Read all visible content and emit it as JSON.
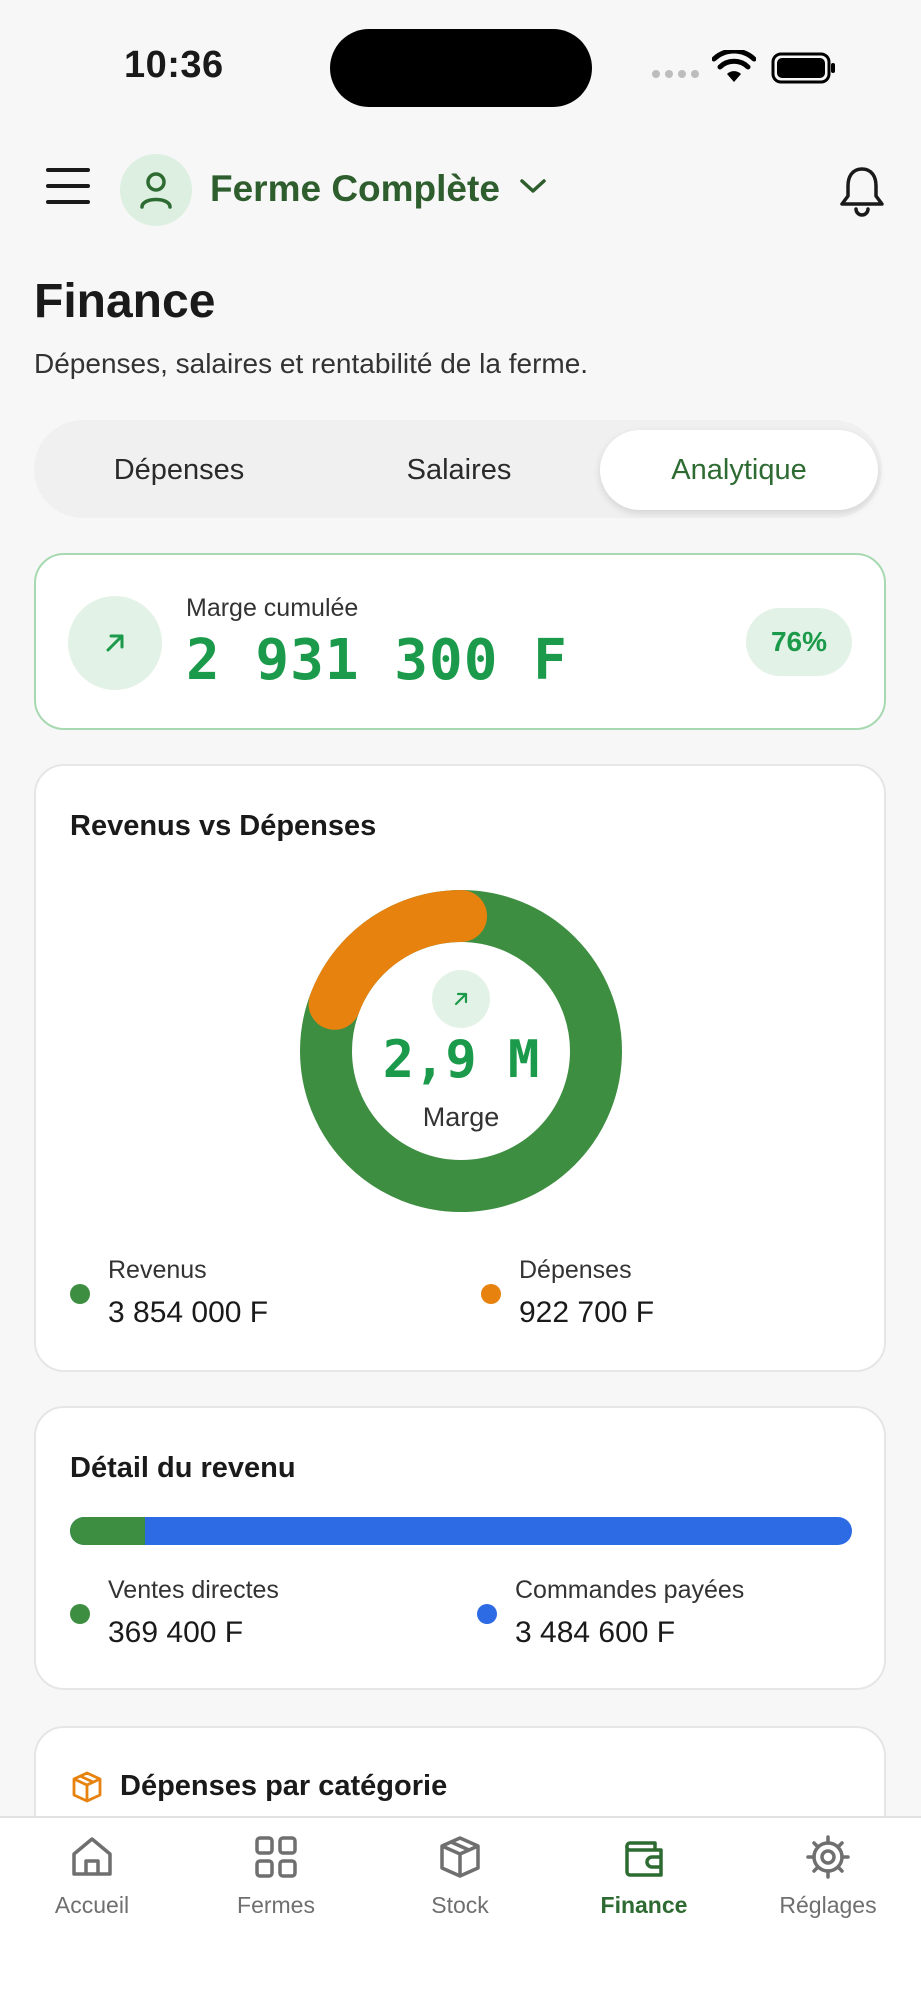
{
  "status_bar": {
    "time": "10:36"
  },
  "header": {
    "farm_name": "Ferme Complète"
  },
  "page": {
    "title": "Finance",
    "subtitle": "Dépenses, salaires et rentabilité de la ferme."
  },
  "tabs": [
    {
      "label": "Dépenses",
      "active": false
    },
    {
      "label": "Salaires",
      "active": false
    },
    {
      "label": "Analytique",
      "active": true
    }
  ],
  "margin_card": {
    "label": "Marge cumulée",
    "value": "2 931 300 F",
    "percent": "76%"
  },
  "revenue_vs_expenses": {
    "title": "Revenus vs Dépenses",
    "center_value": "2,9 M",
    "center_label": "Marge",
    "revenue_label": "Revenus",
    "revenue_value": "3 854 000 F",
    "expenses_label": "Dépenses",
    "expenses_value": "922 700 F",
    "revenue_amount": 3854000,
    "expenses_amount": 922700,
    "revenue_color": "#3e8e41",
    "expenses_color": "#e8820e"
  },
  "revenue_detail": {
    "title": "Détail du revenu",
    "direct_label": "Ventes directes",
    "direct_value": "369 400 F",
    "orders_label": "Commandes payées",
    "orders_value": "3 484 600 F",
    "direct_amount": 369400,
    "orders_amount": 3484600,
    "direct_color": "#3e8e41",
    "orders_color": "#2d6be4"
  },
  "expenses_by_category": {
    "title": "Dépenses par catégorie"
  },
  "bottom_nav": [
    {
      "label": "Accueil",
      "icon": "home-icon",
      "active": false
    },
    {
      "label": "Fermes",
      "icon": "grid-icon",
      "active": false
    },
    {
      "label": "Stock",
      "icon": "box-icon",
      "active": false
    },
    {
      "label": "Finance",
      "icon": "wallet-icon",
      "active": true
    },
    {
      "label": "Réglages",
      "icon": "gear-icon",
      "active": false
    }
  ]
}
